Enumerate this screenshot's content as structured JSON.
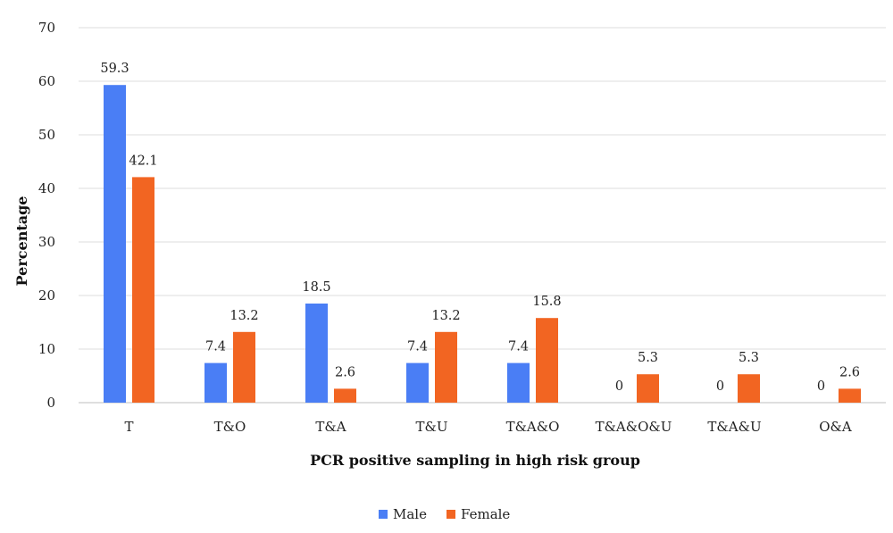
{
  "chart_data": {
    "type": "bar",
    "title": "",
    "xlabel": "PCR positive sampling in high risk group",
    "ylabel": "Percentage",
    "ylim": [
      0,
      70
    ],
    "yticks": [
      0,
      10,
      20,
      30,
      40,
      50,
      60,
      70
    ],
    "grid": true,
    "legend_position": "bottom",
    "categories": [
      "T",
      "T&O",
      "T&A",
      "T&U",
      "T&A&O",
      "T&A&O&U",
      "T&A&U",
      "O&A"
    ],
    "series": [
      {
        "name": "Male",
        "color": "#4a7ef5",
        "values": [
          59.3,
          7.4,
          18.5,
          7.4,
          7.4,
          0,
          0,
          0
        ]
      },
      {
        "name": "Female",
        "color": "#f26522",
        "values": [
          42.1,
          13.2,
          2.6,
          13.2,
          15.8,
          5.3,
          5.3,
          2.6
        ]
      }
    ]
  }
}
